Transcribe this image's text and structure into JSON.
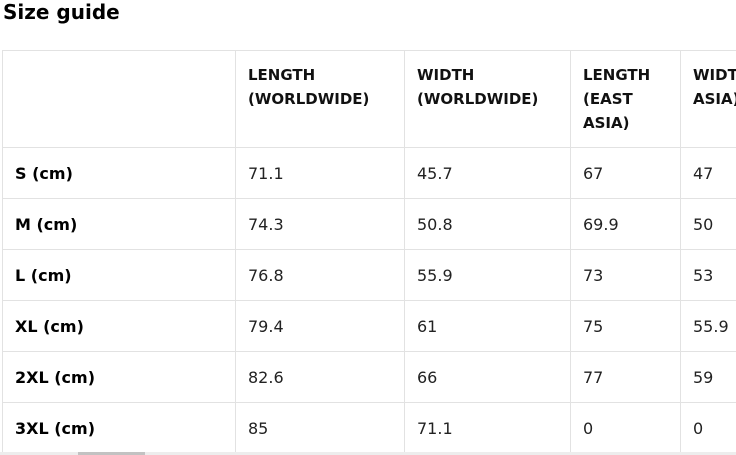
{
  "page": {
    "title": "Size guide"
  },
  "table": {
    "columns": [
      "",
      "LENGTH (WORLDWIDE)",
      "WIDTH (WORLDWIDE)",
      "LENGTH (EAST ASIA)",
      "WIDTH (EAST ASIA)"
    ],
    "rows": [
      {
        "label": "S (cm)",
        "values": [
          "71.1",
          "45.7",
          "67",
          "47"
        ]
      },
      {
        "label": "M (cm)",
        "values": [
          "74.3",
          "50.8",
          "69.9",
          "50"
        ]
      },
      {
        "label": "L (cm)",
        "values": [
          "76.8",
          "55.9",
          "73",
          "53"
        ]
      },
      {
        "label": "XL (cm)",
        "values": [
          "79.4",
          "61",
          "75",
          "55.9"
        ]
      },
      {
        "label": "2XL (cm)",
        "values": [
          "82.6",
          "66",
          "77",
          "59"
        ]
      },
      {
        "label": "3XL (cm)",
        "values": [
          "85",
          "71.1",
          "0",
          "0"
        ]
      }
    ]
  },
  "colors": {
    "title_text": "#000000",
    "header_text": "#111111",
    "value_text": "#222222",
    "table_border": "#e2e2e2",
    "scrollbar_track": "#ededed",
    "scrollbar_thumb": "#c2c2c2",
    "background": "#ffffff"
  }
}
